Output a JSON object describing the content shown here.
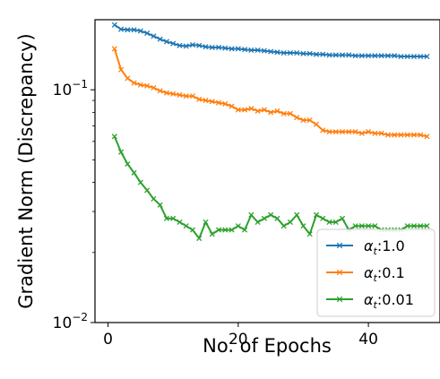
{
  "chart_data": {
    "type": "line",
    "title": "",
    "xlabel": "No. of Epochs",
    "ylabel": "Gradient Norm (Discrepancy)",
    "yscale": "log",
    "xlim": [
      -2,
      51
    ],
    "ylim": [
      0.01,
      0.2
    ],
    "x_ticks": [
      0,
      20,
      40
    ],
    "x_tick_labels": [
      "0",
      "20",
      "40"
    ],
    "y_ticks": [
      0.01,
      0.1
    ],
    "y_tick_labels": [
      {
        "base": "10",
        "exp": "−2"
      },
      {
        "base": "10",
        "exp": "−1"
      }
    ],
    "grid": false,
    "legend_position": "lower right",
    "x": [
      1,
      2,
      3,
      4,
      5,
      6,
      7,
      8,
      9,
      10,
      11,
      12,
      13,
      14,
      15,
      16,
      17,
      18,
      19,
      20,
      21,
      22,
      23,
      24,
      25,
      26,
      27,
      28,
      29,
      30,
      31,
      32,
      33,
      34,
      35,
      36,
      37,
      38,
      39,
      40,
      41,
      42,
      43,
      44,
      45,
      46,
      47,
      48,
      49
    ],
    "series": [
      {
        "name": "1.0",
        "color": "#1f77b4",
        "values": [
          0.19,
          0.182,
          0.181,
          0.181,
          0.179,
          0.175,
          0.17,
          0.165,
          0.161,
          0.158,
          0.155,
          0.154,
          0.156,
          0.155,
          0.153,
          0.152,
          0.152,
          0.151,
          0.15,
          0.15,
          0.149,
          0.148,
          0.148,
          0.147,
          0.146,
          0.145,
          0.144,
          0.144,
          0.144,
          0.143,
          0.143,
          0.142,
          0.142,
          0.141,
          0.141,
          0.141,
          0.141,
          0.14,
          0.14,
          0.14,
          0.14,
          0.14,
          0.14,
          0.14,
          0.139,
          0.139,
          0.139,
          0.139,
          0.139
        ]
      },
      {
        "name": "0.1",
        "color": "#ff7f0e",
        "values": [
          0.15,
          0.122,
          0.112,
          0.107,
          0.105,
          0.104,
          0.102,
          0.099,
          0.097,
          0.096,
          0.095,
          0.094,
          0.094,
          0.091,
          0.09,
          0.089,
          0.088,
          0.087,
          0.085,
          0.082,
          0.082,
          0.083,
          0.081,
          0.082,
          0.08,
          0.081,
          0.079,
          0.079,
          0.076,
          0.074,
          0.074,
          0.071,
          0.067,
          0.066,
          0.066,
          0.066,
          0.066,
          0.066,
          0.065,
          0.066,
          0.065,
          0.065,
          0.064,
          0.064,
          0.064,
          0.064,
          0.064,
          0.064,
          0.063
        ]
      },
      {
        "name": "0.01",
        "color": "#2ca02c",
        "values": [
          0.063,
          0.054,
          0.048,
          0.044,
          0.04,
          0.037,
          0.034,
          0.032,
          0.028,
          0.028,
          0.027,
          0.026,
          0.025,
          0.023,
          0.027,
          0.024,
          0.025,
          0.025,
          0.025,
          0.026,
          0.025,
          0.029,
          0.027,
          0.028,
          0.029,
          0.028,
          0.026,
          0.027,
          0.029,
          0.026,
          0.024,
          0.029,
          0.028,
          0.027,
          0.027,
          0.028,
          0.025,
          0.026,
          0.026,
          0.026,
          0.026,
          0.025,
          0.025,
          0.025,
          0.025,
          0.026,
          0.026,
          0.026,
          0.026
        ]
      }
    ]
  },
  "legend": {
    "symbol": "α",
    "subscript": "t",
    "separator": ":"
  }
}
